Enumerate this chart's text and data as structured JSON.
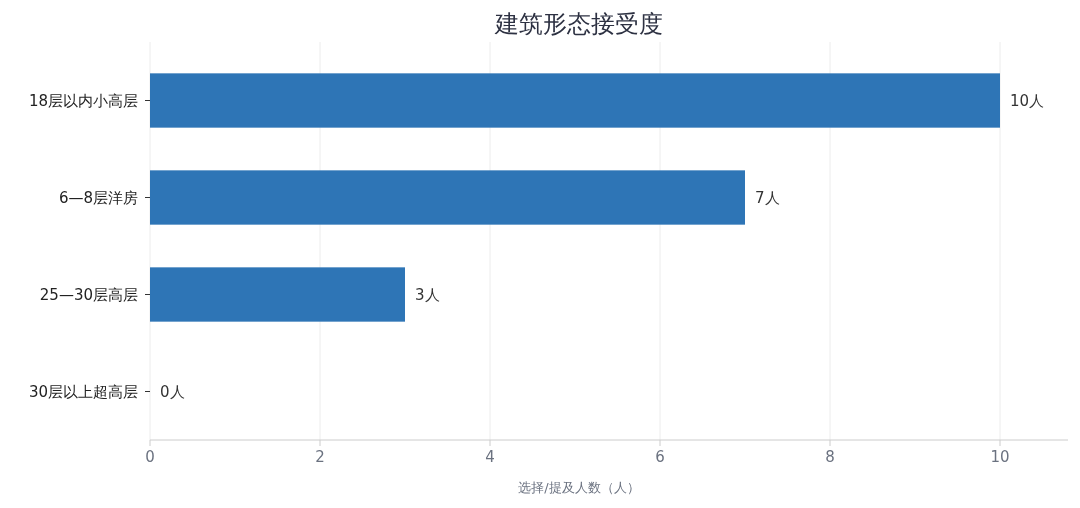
{
  "chart_data": {
    "type": "bar",
    "orientation": "horizontal",
    "title": "建筑形态接受度",
    "xlabel": "选择/提及人数（人）",
    "categories": [
      "18层以内小高层",
      "6—8层洋房",
      "25—30层高层",
      "30层以上超高层"
    ],
    "values": [
      10,
      7,
      3,
      0
    ],
    "value_labels": [
      "10人",
      "7人",
      "3人",
      "0人"
    ],
    "color": "#2e75b6",
    "xlim": [
      0,
      10.8
    ],
    "xticks": [
      0,
      2,
      4,
      6,
      8,
      10
    ],
    "grid": "x"
  }
}
